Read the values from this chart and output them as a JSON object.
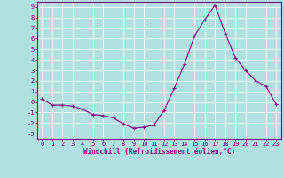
{
  "x": [
    0,
    1,
    2,
    3,
    4,
    5,
    6,
    7,
    8,
    9,
    10,
    11,
    12,
    13,
    14,
    15,
    16,
    17,
    18,
    19,
    20,
    21,
    22,
    23
  ],
  "y": [
    0.3,
    -0.3,
    -0.3,
    -0.4,
    -0.7,
    -1.2,
    -1.3,
    -1.5,
    -2.1,
    -2.5,
    -2.4,
    -2.2,
    -0.8,
    1.3,
    3.6,
    6.3,
    7.8,
    9.2,
    6.5,
    4.2,
    3.0,
    2.0,
    1.5,
    -0.2
  ],
  "line_color": "#800080",
  "marker": "+",
  "marker_color": "#800080",
  "bg_color": "#b2e0e0",
  "grid_color": "#ffffff",
  "ylabel_ticks": [
    9,
    8,
    7,
    6,
    5,
    4,
    3,
    2,
    1,
    0,
    -1,
    -2,
    -3
  ],
  "ylim": [
    -3.5,
    9.5
  ],
  "xlim": [
    -0.5,
    23.5
  ],
  "xlabel": "Windchill (Refroidissement éolien,°C)",
  "tick_color": "#800080",
  "spine_color": "#800080",
  "tick_fontsize": 5.0,
  "xlabel_fontsize": 5.5,
  "linewidth": 0.8,
  "markersize": 3.0
}
